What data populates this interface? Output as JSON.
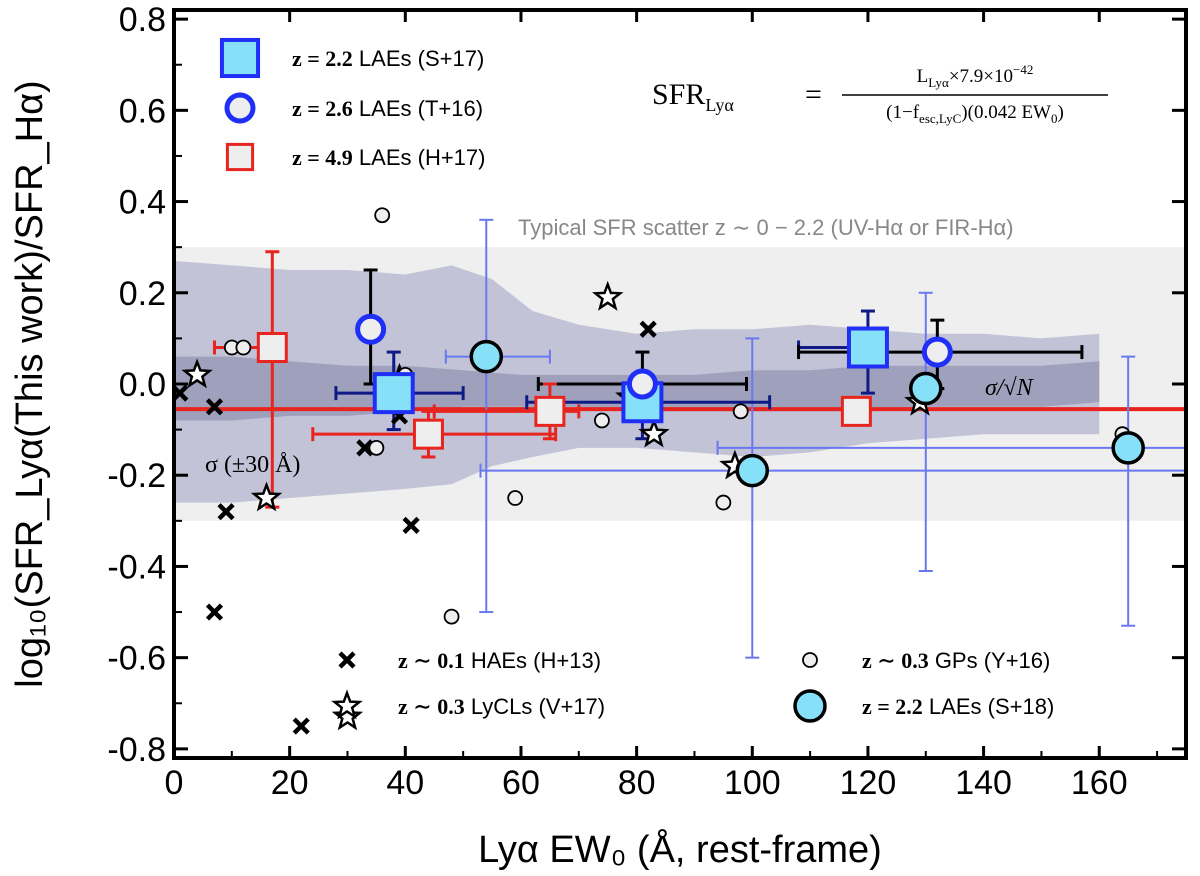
{
  "chart_data": {
    "type": "scatter",
    "xlabel": "Lyα EW₀ (Å, rest-frame)",
    "ylabel": "log₁₀(SFR_Lyα(This work)/SFR_Hα)",
    "xlim": [
      0,
      175
    ],
    "ylim": [
      -0.82,
      0.82
    ],
    "x_ticks": [
      0,
      20,
      40,
      60,
      80,
      100,
      120,
      140,
      160
    ],
    "y_ticks": [
      -0.8,
      -0.6,
      -0.4,
      -0.2,
      0.0,
      0.2,
      0.4,
      0.6,
      0.8
    ],
    "y_tick_labels": [
      "-0.8",
      "-0.6",
      "-0.4",
      "-0.2",
      "0.0",
      "0.2",
      "0.4",
      "0.6",
      "0.8"
    ],
    "bands": {
      "typical_scatter": {
        "y_low": -0.3,
        "y_high": 0.3,
        "label": "Typical SFR scatter z ∼ 0 − 2.2 (UV-Hα or FIR-Hα)",
        "color": "#efefef"
      },
      "sigma_band": {
        "label": "σ (±30 Å)",
        "x": [
          0,
          10,
          20,
          30,
          40,
          48,
          55,
          62,
          70,
          80,
          90,
          100,
          110,
          120,
          130,
          140,
          150,
          160
        ],
        "y_high": [
          0.27,
          0.26,
          0.25,
          0.25,
          0.24,
          0.26,
          0.23,
          0.16,
          0.13,
          0.11,
          0.12,
          0.12,
          0.13,
          0.12,
          0.11,
          0.11,
          0.1,
          0.11
        ],
        "y_low": [
          -0.26,
          -0.26,
          -0.25,
          -0.24,
          -0.23,
          -0.22,
          -0.18,
          -0.16,
          -0.14,
          -0.14,
          -0.15,
          -0.16,
          -0.15,
          -0.13,
          -0.12,
          -0.11,
          -0.11,
          -0.11
        ],
        "color": "#c2c3d7"
      },
      "sem_band": {
        "label": "σ/√N",
        "x": [
          0,
          10,
          20,
          30,
          40,
          50,
          60,
          70,
          80,
          90,
          100,
          110,
          120,
          130,
          140,
          150,
          160
        ],
        "y_high": [
          0.06,
          0.06,
          0.05,
          0.04,
          0.04,
          0.03,
          0.02,
          0.02,
          0.02,
          0.02,
          0.03,
          0.03,
          0.04,
          0.04,
          0.04,
          0.04,
          0.05
        ],
        "y_low": [
          -0.08,
          -0.08,
          -0.07,
          -0.07,
          -0.06,
          -0.05,
          -0.05,
          -0.05,
          -0.06,
          -0.06,
          -0.06,
          -0.06,
          -0.06,
          -0.05,
          -0.05,
          -0.05,
          -0.04
        ],
        "color": "#9fa1bc"
      }
    },
    "median_line": {
      "y": -0.055,
      "color": "#e8241e"
    },
    "series": [
      {
        "name": "z ∼ 0.1 HAEs (H+13)",
        "marker": "x",
        "points": [
          [
            1,
            -0.02
          ],
          [
            7,
            -0.05
          ],
          [
            9,
            -0.28
          ],
          [
            7,
            -0.5
          ],
          [
            22,
            -0.75
          ],
          [
            33,
            -0.14
          ],
          [
            36,
            -0.01
          ],
          [
            39,
            -0.07
          ],
          [
            41,
            -0.31
          ],
          [
            82,
            0.12
          ]
        ]
      },
      {
        "name": "z ∼ 0.3 LyCLs (V+17)",
        "marker": "star",
        "points": [
          [
            4,
            0.02
          ],
          [
            16,
            -0.25
          ],
          [
            30,
            -0.73
          ],
          [
            39,
            0.01
          ],
          [
            75,
            0.19
          ],
          [
            79,
            -0.03
          ],
          [
            83,
            -0.11
          ],
          [
            97,
            -0.18
          ],
          [
            129,
            -0.04
          ]
        ]
      },
      {
        "name": "z ∼ 0.3 GPs (Y+16)",
        "marker": "circle-small",
        "points": [
          [
            10,
            0.08
          ],
          [
            12,
            0.08
          ],
          [
            36,
            0.37
          ],
          [
            35,
            -0.14
          ],
          [
            40,
            0.02
          ],
          [
            48,
            -0.51
          ],
          [
            59,
            -0.25
          ],
          [
            74,
            -0.08
          ],
          [
            98,
            -0.06
          ],
          [
            95,
            -0.26
          ],
          [
            164,
            -0.11
          ]
        ]
      },
      {
        "name": "z = 2.2 LAEs (S+18)",
        "marker": "circle-cyan",
        "points": [
          {
            "x": 54,
            "y": 0.06,
            "xerr": [
              7,
              11
            ],
            "yerr": [
              0.56,
              0.3
            ]
          },
          {
            "x": 100,
            "y": -0.19,
            "xerr": [
              47,
              75
            ],
            "yerr": [
              0.41,
              0.29
            ]
          },
          {
            "x": 130,
            "y": -0.01,
            "xerr": [
              0,
              0
            ],
            "yerr": [
              0.4,
              0.21
            ]
          },
          {
            "x": 165,
            "y": -0.14,
            "xerr": [
              71,
              10
            ],
            "yerr": [
              0.39,
              0.2
            ]
          }
        ]
      },
      {
        "name": "z = 2.2 LAEs (S+17)",
        "marker": "square-cyan",
        "points": [
          {
            "x": 38,
            "y": -0.02,
            "xerr": [
              10,
              12
            ],
            "yerr": [
              0.08,
              0.09
            ]
          },
          {
            "x": 81,
            "y": -0.04,
            "xerr": [
              20,
              22
            ],
            "yerr": [
              0.08,
              0.06
            ]
          },
          {
            "x": 120,
            "y": 0.08,
            "xerr": [
              12,
              0
            ],
            "yerr": [
              0.1,
              0.08
            ]
          }
        ]
      },
      {
        "name": "z = 2.6 LAEs (T+16)",
        "marker": "circle-blue",
        "points": [
          {
            "x": 34,
            "y": 0.12,
            "xerr": [
              0,
              2
            ],
            "yerr": [
              0.12,
              0.13
            ]
          },
          {
            "x": 81,
            "y": 0.0,
            "xerr": [
              18,
              18
            ],
            "yerr": [
              0.08,
              0.07
            ]
          },
          {
            "x": 132,
            "y": 0.07,
            "xerr": [
              24,
              25
            ],
            "yerr": [
              0.08,
              0.07
            ]
          }
        ]
      },
      {
        "name": "z = 4.9 LAEs (H+17)",
        "marker": "square-red",
        "points": [
          {
            "x": 17,
            "y": 0.08,
            "xerr": [
              10,
              2
            ],
            "yerr": [
              0.35,
              0.21
            ]
          },
          {
            "x": 44,
            "y": -0.11,
            "xerr": [
              20,
              22
            ],
            "yerr": [
              0.05,
              0.05
            ]
          },
          {
            "x": 65,
            "y": -0.06,
            "xerr": [
              20,
              5
            ],
            "yerr": [
              0.06,
              0.06
            ]
          },
          {
            "x": 118,
            "y": -0.06,
            "xerr": [
              0,
              0
            ],
            "yerr": [
              0,
              0
            ]
          }
        ]
      }
    ],
    "legend_top": [
      {
        "bold": "z = 2.2",
        "text": " LAEs (S+17)",
        "marker": "square-cyan"
      },
      {
        "bold": "z = 2.6",
        "text": " LAEs (T+16)",
        "marker": "circle-blue"
      },
      {
        "bold": "z = 4.9",
        "text": " LAEs (H+17)",
        "marker": "square-red"
      }
    ],
    "legend_bottom": [
      {
        "bold": "z ∼ 0.1",
        "text": " HAEs (H+13)",
        "marker": "x"
      },
      {
        "bold": "z ∼ 0.3",
        "text": " LyCLs (V+17)",
        "marker": "star"
      },
      {
        "bold": "z ∼ 0.3",
        "text": " GPs (Y+16)",
        "marker": "circle-small"
      },
      {
        "bold": "z = 2.2",
        "text": " LAEs (S+18)",
        "marker": "circle-cyan"
      }
    ],
    "formula": {
      "lhs": "SFR",
      "lhs_sub": "Lyα",
      "numerator": "L",
      "numerator_sub": "Lyα",
      "numerator_rest": "×7.9×10",
      "numerator_exp": "−42",
      "denominator_left": "(1−f",
      "denominator_sub": "esc,LyC",
      "denominator_right": ")(0.042 EW",
      "denominator_sub2": "0",
      "denominator_end": ")"
    },
    "colors": {
      "cyan_fill": "#86e1f8",
      "blue_edge": "#1f2ff5",
      "navy_err": "#101a86",
      "light_blue_err": "#6a78f0",
      "red": "#e8241e",
      "square_red_fill": "#eeeeee"
    }
  }
}
